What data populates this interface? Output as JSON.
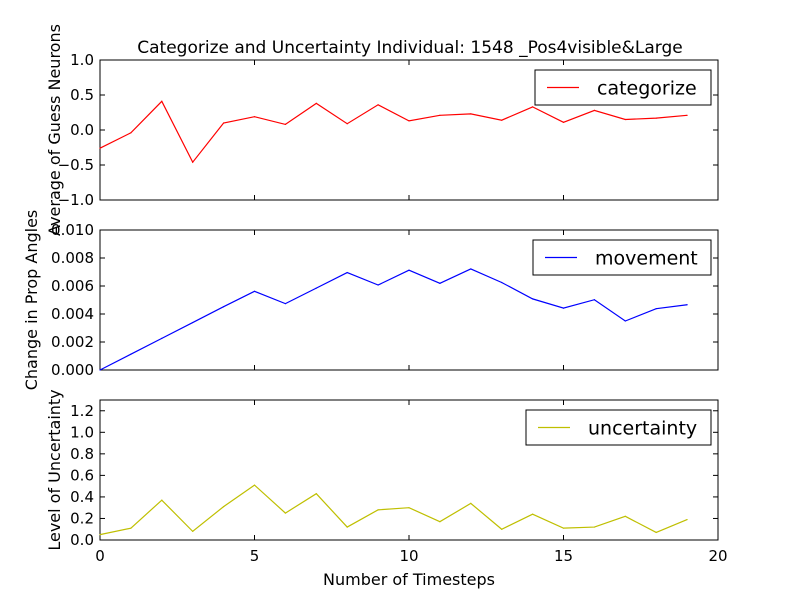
{
  "title": "Categorize and Uncertainty Individual: 1548 _Pos4visible&Large",
  "chart_data": [
    {
      "type": "line",
      "ylabel": "Average of Guess Neurons",
      "xlim": [
        0,
        20
      ],
      "ylim": [
        -1.0,
        1.0
      ],
      "yticks": [
        "−1.0",
        "−0.5",
        "0.0",
        "0.5",
        "1.0"
      ],
      "xticks": [],
      "legend_position": "top-right",
      "series": [
        {
          "name": "categorize",
          "color": "#ff0000",
          "x": [
            0,
            1,
            2,
            3,
            4,
            5,
            6,
            7,
            8,
            9,
            10,
            11,
            12,
            13,
            14,
            15,
            16,
            17,
            18,
            19
          ],
          "values": [
            -0.26,
            -0.04,
            0.41,
            -0.46,
            0.1,
            0.19,
            0.08,
            0.38,
            0.09,
            0.36,
            0.13,
            0.21,
            0.23,
            0.14,
            0.33,
            0.11,
            0.28,
            0.15,
            0.17,
            0.21
          ]
        }
      ]
    },
    {
      "type": "line",
      "ylabel": "Change in Prop Angles",
      "xlim": [
        0,
        20
      ],
      "ylim": [
        0.0,
        0.01
      ],
      "yticks": [
        "0.000",
        "0.002",
        "0.004",
        "0.006",
        "0.008",
        "0.010"
      ],
      "xticks": [],
      "legend_position": "top-right",
      "series": [
        {
          "name": "movement",
          "color": "#0000ff",
          "x": [
            0,
            1,
            2,
            3,
            4,
            5,
            6,
            7,
            8,
            9,
            10,
            11,
            12,
            13,
            14,
            15,
            16,
            17,
            18,
            19
          ],
          "values": [
            0.0,
            0.00113,
            0.00226,
            0.00339,
            0.00452,
            0.00562,
            0.00474,
            0.00585,
            0.00696,
            0.00607,
            0.00713,
            0.00619,
            0.00722,
            0.00625,
            0.00508,
            0.00442,
            0.00502,
            0.0035,
            0.00438,
            0.00466
          ]
        }
      ]
    },
    {
      "type": "line",
      "ylabel": "Level of Uncertainty",
      "xlabel": "Number of Timesteps",
      "xlim": [
        0,
        20
      ],
      "ylim": [
        0.0,
        1.3
      ],
      "yticks": [
        "0.0",
        "0.2",
        "0.4",
        "0.6",
        "0.8",
        "1.0",
        "1.2"
      ],
      "xticks": [
        "0",
        "5",
        "10",
        "15",
        "20"
      ],
      "legend_position": "top-right",
      "series": [
        {
          "name": "uncertainty",
          "color": "#bfbf00",
          "x": [
            0,
            1,
            2,
            3,
            4,
            5,
            6,
            7,
            8,
            9,
            10,
            11,
            12,
            13,
            14,
            15,
            16,
            17,
            18,
            19
          ],
          "values": [
            0.05,
            0.11,
            0.37,
            0.08,
            0.31,
            0.51,
            0.25,
            0.43,
            0.12,
            0.28,
            0.3,
            0.17,
            0.34,
            0.1,
            0.24,
            0.11,
            0.12,
            0.22,
            0.07,
            0.19
          ]
        }
      ]
    }
  ]
}
